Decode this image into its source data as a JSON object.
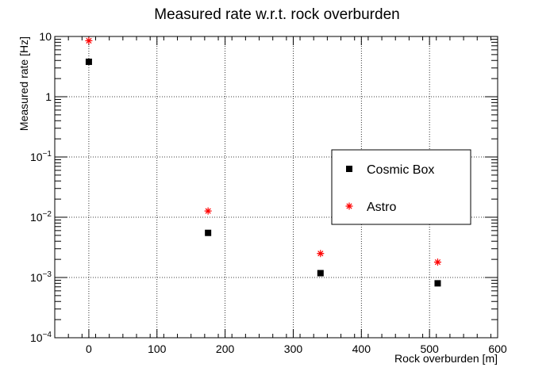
{
  "chart_data": {
    "type": "scatter",
    "title": "Measured rate w.r.t. rock overburden",
    "xlabel": "Rock overburden [m]",
    "ylabel": "Measured rate [Hz]",
    "xlim": [
      -50,
      600
    ],
    "ylim": [
      0.0001,
      10
    ],
    "yscale": "log",
    "grid": true,
    "legend_position": "right",
    "x_ticks": [
      0,
      100,
      200,
      300,
      400,
      500,
      600
    ],
    "x_tick_labels": [
      "0",
      "100",
      "200",
      "300",
      "400",
      "500",
      "600"
    ],
    "y_ticks": [
      {
        "value": 10,
        "base": "10",
        "exp": ""
      },
      {
        "value": 1,
        "base": "1",
        "exp": ""
      },
      {
        "value": 0.1,
        "base": "10",
        "exp": "−1"
      },
      {
        "value": 0.01,
        "base": "10",
        "exp": "−2"
      },
      {
        "value": 0.001,
        "base": "10",
        "exp": "−3"
      },
      {
        "value": 0.0001,
        "base": "10",
        "exp": "−4"
      }
    ],
    "series": [
      {
        "name": "Cosmic Box",
        "marker": "square",
        "color": "#000000",
        "points": [
          {
            "x": 0,
            "y": 3.8,
            "xerr": 0
          },
          {
            "x": 175,
            "y": 0.0055,
            "xerr": 3
          },
          {
            "x": 340,
            "y": 0.00118,
            "xerr": 4
          },
          {
            "x": 512,
            "y": 0.0008,
            "xerr": 3
          }
        ]
      },
      {
        "name": "Astro",
        "marker": "star",
        "color": "#ff0000",
        "points": [
          {
            "x": 0,
            "y": 8.5,
            "xerr": 0
          },
          {
            "x": 175,
            "y": 0.0127,
            "xerr": 3
          },
          {
            "x": 340,
            "y": 0.0025,
            "xerr": 4
          },
          {
            "x": 512,
            "y": 0.0018,
            "xerr": 3
          }
        ]
      }
    ]
  }
}
